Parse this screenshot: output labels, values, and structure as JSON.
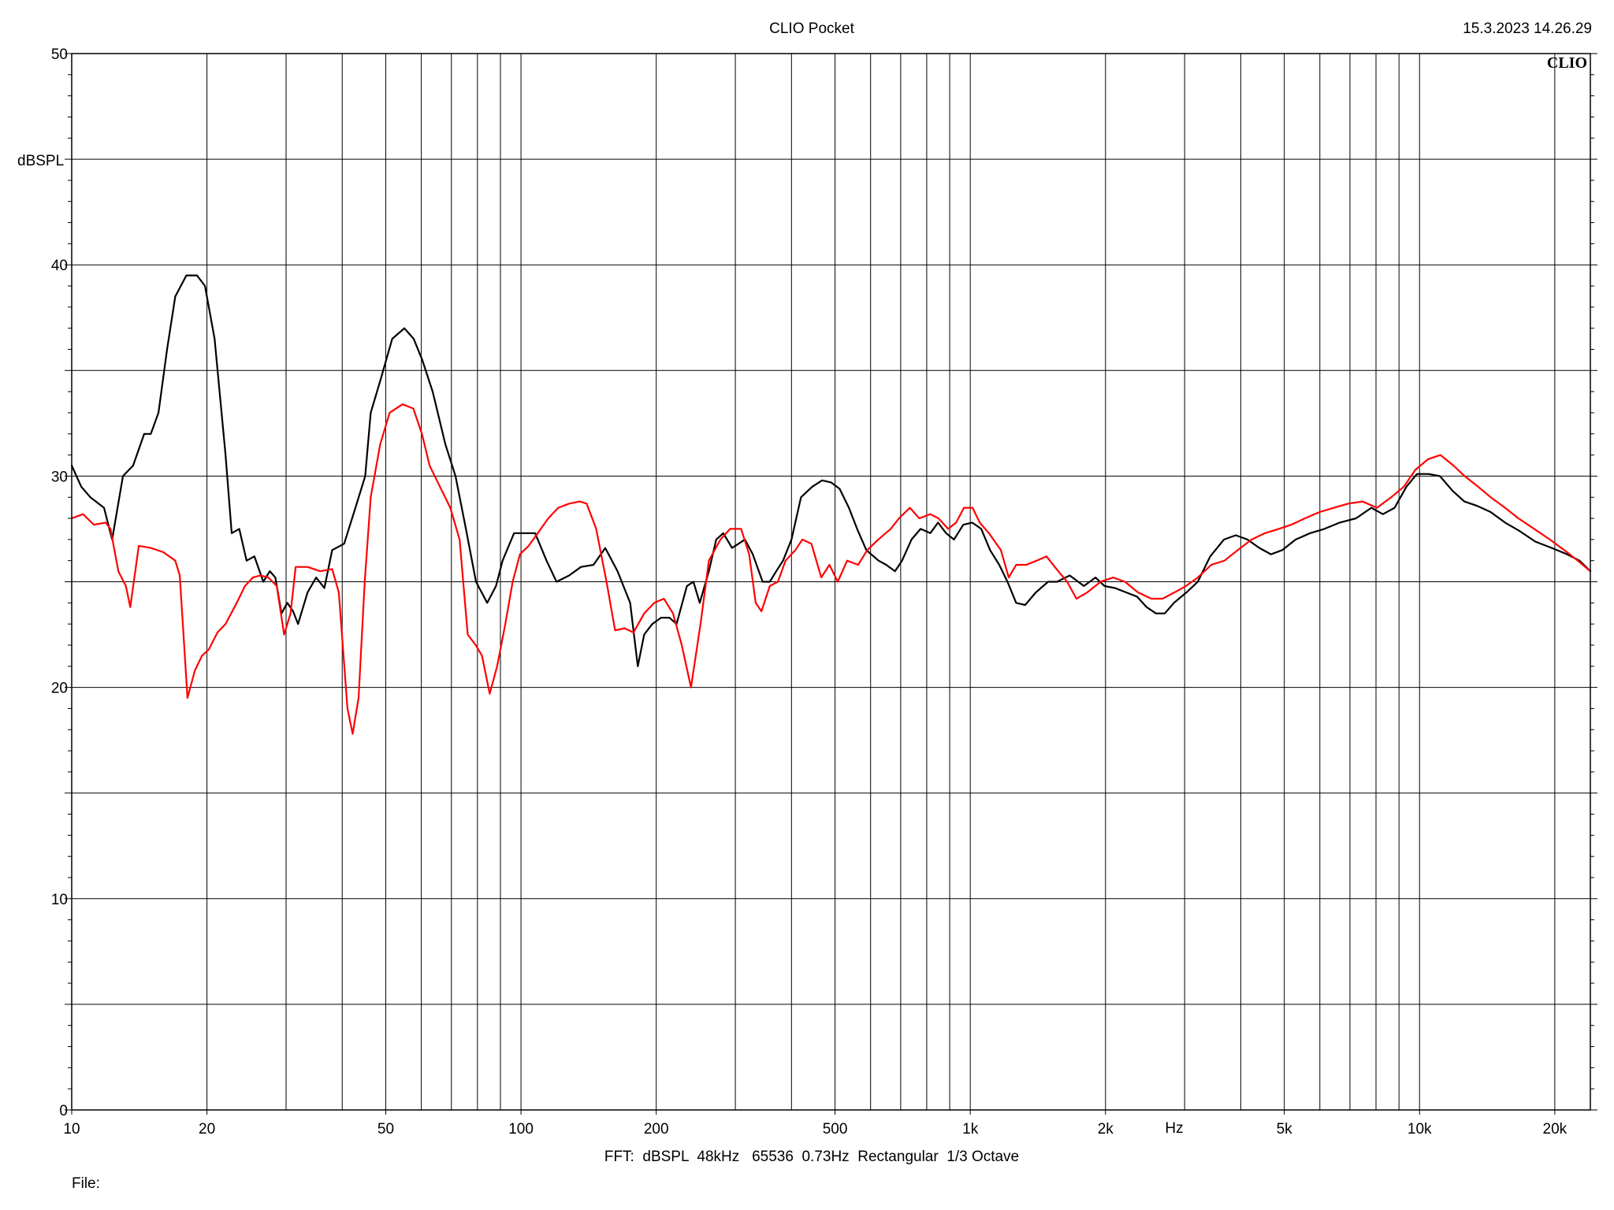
{
  "header": {
    "title": "CLIO Pocket",
    "timestamp": "15.3.2023 14.26.29",
    "brand": "CLIO"
  },
  "footer": {
    "settings": "FFT:  dBSPL  48kHz   65536  0.73Hz  Rectangular  1/3 Octave",
    "file_label": "File:"
  },
  "chart_data": {
    "type": "line",
    "title": "CLIO Pocket",
    "xlabel": "Hz",
    "ylabel": "dBSPL",
    "xscale": "log",
    "xlim": [
      10,
      24000
    ],
    "ylim": [
      0,
      50
    ],
    "grid": true,
    "legend": "none",
    "x_ticks": [
      {
        "value": 10,
        "label": "10"
      },
      {
        "value": 20,
        "label": "20"
      },
      {
        "value": 50,
        "label": "50"
      },
      {
        "value": 100,
        "label": "100"
      },
      {
        "value": 200,
        "label": "200"
      },
      {
        "value": 500,
        "label": "500"
      },
      {
        "value": 1000,
        "label": "1k"
      },
      {
        "value": 2000,
        "label": "2k"
      },
      {
        "value": 5000,
        "label": "5k"
      },
      {
        "value": 10000,
        "label": "10k"
      },
      {
        "value": 20000,
        "label": "20k"
      }
    ],
    "y_ticks": [
      {
        "value": 0,
        "label": "0"
      },
      {
        "value": 10,
        "label": "10"
      },
      {
        "value": 20,
        "label": "20"
      },
      {
        "value": 30,
        "label": "30"
      },
      {
        "value": 40,
        "label": "40"
      },
      {
        "value": 50,
        "label": "50"
      }
    ],
    "series": [
      {
        "color": "#000000",
        "points": [
          [
            10,
            30.5
          ],
          [
            10.5,
            29.5
          ],
          [
            11,
            29.0
          ],
          [
            11.8,
            28.5
          ],
          [
            12.3,
            27.0
          ],
          [
            13,
            30.0
          ],
          [
            13.7,
            30.5
          ],
          [
            14.5,
            32.0
          ],
          [
            15,
            32.0
          ],
          [
            15.6,
            33.0
          ],
          [
            16.3,
            36.0
          ],
          [
            17,
            38.5
          ],
          [
            18,
            39.5
          ],
          [
            19,
            39.5
          ],
          [
            19.8,
            39.0
          ],
          [
            20.8,
            36.5
          ],
          [
            22,
            31.0
          ],
          [
            22.7,
            27.3
          ],
          [
            23.6,
            27.5
          ],
          [
            24.5,
            26.0
          ],
          [
            25.5,
            26.2
          ],
          [
            26.7,
            25.0
          ],
          [
            27.6,
            25.5
          ],
          [
            28.4,
            25.2
          ],
          [
            29.3,
            23.5
          ],
          [
            30.2,
            24.0
          ],
          [
            31.1,
            23.6
          ],
          [
            31.9,
            23.0
          ],
          [
            33.5,
            24.5
          ],
          [
            35,
            25.2
          ],
          [
            36.5,
            24.7
          ],
          [
            38,
            26.5
          ],
          [
            40.4,
            26.8
          ],
          [
            42.8,
            28.5
          ],
          [
            45,
            30.0
          ],
          [
            46.3,
            33.0
          ],
          [
            48.6,
            34.5
          ],
          [
            51.7,
            36.5
          ],
          [
            55,
            37.0
          ],
          [
            57.7,
            36.5
          ],
          [
            60.3,
            35.5
          ],
          [
            63.6,
            34.0
          ],
          [
            67.9,
            31.5
          ],
          [
            71.5,
            30.0
          ],
          [
            75.4,
            27.5
          ],
          [
            79.4,
            25.0
          ],
          [
            84.1,
            24.0
          ],
          [
            88,
            24.8
          ],
          [
            91,
            26.0
          ],
          [
            96.5,
            27.3
          ],
          [
            102,
            27.3
          ],
          [
            107.5,
            27.3
          ],
          [
            114,
            26.0
          ],
          [
            120,
            25.0
          ],
          [
            128,
            25.3
          ],
          [
            136,
            25.7
          ],
          [
            145,
            25.8
          ],
          [
            154,
            26.6
          ],
          [
            164,
            25.5
          ],
          [
            175,
            24.0
          ],
          [
            182,
            21.0
          ],
          [
            188,
            22.5
          ],
          [
            196,
            23.0
          ],
          [
            205,
            23.3
          ],
          [
            214,
            23.3
          ],
          [
            222,
            23.0
          ],
          [
            234,
            24.8
          ],
          [
            242,
            25.0
          ],
          [
            250,
            24.0
          ],
          [
            262,
            25.5
          ],
          [
            272,
            27.0
          ],
          [
            282,
            27.3
          ],
          [
            295,
            26.6
          ],
          [
            305,
            26.8
          ],
          [
            315,
            27.0
          ],
          [
            328,
            26.3
          ],
          [
            345,
            25.0
          ],
          [
            358,
            25.0
          ],
          [
            370,
            25.5
          ],
          [
            383,
            26.0
          ],
          [
            400,
            27.0
          ],
          [
            420,
            29.0
          ],
          [
            445,
            29.5
          ],
          [
            468,
            29.8
          ],
          [
            490,
            29.7
          ],
          [
            512,
            29.4
          ],
          [
            537,
            28.5
          ],
          [
            560,
            27.5
          ],
          [
            587,
            26.5
          ],
          [
            625,
            26.0
          ],
          [
            650,
            25.8
          ],
          [
            680,
            25.5
          ],
          [
            705,
            26.0
          ],
          [
            740,
            27.0
          ],
          [
            775,
            27.5
          ],
          [
            815,
            27.3
          ],
          [
            848,
            27.8
          ],
          [
            883,
            27.3
          ],
          [
            920,
            27.0
          ],
          [
            965,
            27.7
          ],
          [
            1010,
            27.8
          ],
          [
            1058,
            27.5
          ],
          [
            1107,
            26.5
          ],
          [
            1160,
            25.8
          ],
          [
            1210,
            25.0
          ],
          [
            1265,
            24.0
          ],
          [
            1325,
            23.9
          ],
          [
            1400,
            24.5
          ],
          [
            1490,
            25.0
          ],
          [
            1560,
            25.0
          ],
          [
            1665,
            25.3
          ],
          [
            1790,
            24.8
          ],
          [
            1900,
            25.2
          ],
          [
            1990,
            24.8
          ],
          [
            2100,
            24.7
          ],
          [
            2220,
            24.5
          ],
          [
            2350,
            24.3
          ],
          [
            2470,
            23.8
          ],
          [
            2590,
            23.5
          ],
          [
            2710,
            23.5
          ],
          [
            2840,
            24.0
          ],
          [
            3030,
            24.5
          ],
          [
            3210,
            25.0
          ],
          [
            3420,
            26.2
          ],
          [
            3670,
            27.0
          ],
          [
            3900,
            27.2
          ],
          [
            4140,
            27.0
          ],
          [
            4400,
            26.6
          ],
          [
            4670,
            26.3
          ],
          [
            4950,
            26.5
          ],
          [
            5300,
            27.0
          ],
          [
            5710,
            27.3
          ],
          [
            6140,
            27.5
          ],
          [
            6640,
            27.8
          ],
          [
            7220,
            28.0
          ],
          [
            7810,
            28.5
          ],
          [
            8290,
            28.2
          ],
          [
            8800,
            28.5
          ],
          [
            9350,
            29.5
          ],
          [
            9870,
            30.1
          ],
          [
            10480,
            30.1
          ],
          [
            11100,
            30.0
          ],
          [
            11850,
            29.3
          ],
          [
            12580,
            28.8
          ],
          [
            13400,
            28.6
          ],
          [
            14400,
            28.3
          ],
          [
            15500,
            27.8
          ],
          [
            16700,
            27.4
          ],
          [
            18100,
            26.9
          ],
          [
            19700,
            26.6
          ],
          [
            21300,
            26.3
          ],
          [
            22700,
            26.0
          ],
          [
            24000,
            25.5
          ]
        ]
      },
      {
        "color": "#ff0000",
        "points": [
          [
            10,
            28.0
          ],
          [
            10.6,
            28.2
          ],
          [
            11.2,
            27.7
          ],
          [
            11.9,
            27.8
          ],
          [
            12.2,
            27.5
          ],
          [
            12.7,
            25.5
          ],
          [
            13.2,
            24.8
          ],
          [
            13.5,
            23.8
          ],
          [
            14.1,
            26.7
          ],
          [
            15,
            26.6
          ],
          [
            16,
            26.4
          ],
          [
            17,
            26.0
          ],
          [
            17.4,
            25.3
          ],
          [
            18.1,
            19.5
          ],
          [
            18.8,
            20.8
          ],
          [
            19.5,
            21.5
          ],
          [
            20.2,
            21.8
          ],
          [
            21.1,
            22.6
          ],
          [
            22,
            23.0
          ],
          [
            23.3,
            24.0
          ],
          [
            24.3,
            24.8
          ],
          [
            25.3,
            25.2
          ],
          [
            26.3,
            25.3
          ],
          [
            27.4,
            25.2
          ],
          [
            28.6,
            24.8
          ],
          [
            29.7,
            22.5
          ],
          [
            30.7,
            23.5
          ],
          [
            31.5,
            25.7
          ],
          [
            33.5,
            25.7
          ],
          [
            35.7,
            25.5
          ],
          [
            38,
            25.6
          ],
          [
            39.3,
            24.5
          ],
          [
            41.1,
            19.0
          ],
          [
            42.2,
            17.8
          ],
          [
            43.5,
            19.5
          ],
          [
            44.9,
            25.0
          ],
          [
            46.3,
            29.0
          ],
          [
            48.6,
            31.5
          ],
          [
            51,
            33.0
          ],
          [
            54.5,
            33.4
          ],
          [
            57.6,
            33.2
          ],
          [
            60.2,
            32.0
          ],
          [
            62.6,
            30.5
          ],
          [
            66,
            29.5
          ],
          [
            69.6,
            28.5
          ],
          [
            73,
            27.0
          ],
          [
            76.1,
            22.5
          ],
          [
            79.3,
            22.0
          ],
          [
            81.9,
            21.5
          ],
          [
            85.2,
            19.7
          ],
          [
            88.5,
            21.0
          ],
          [
            92.3,
            23.0
          ],
          [
            95.8,
            25.0
          ],
          [
            99.5,
            26.3
          ],
          [
            104,
            26.7
          ],
          [
            109,
            27.3
          ],
          [
            115,
            28.0
          ],
          [
            121,
            28.5
          ],
          [
            128,
            28.7
          ],
          [
            135,
            28.8
          ],
          [
            140,
            28.7
          ],
          [
            147,
            27.5
          ],
          [
            155,
            25.0
          ],
          [
            162,
            22.7
          ],
          [
            170,
            22.8
          ],
          [
            178,
            22.6
          ],
          [
            188,
            23.5
          ],
          [
            198,
            24.0
          ],
          [
            208,
            24.2
          ],
          [
            218,
            23.5
          ],
          [
            228,
            22.0
          ],
          [
            239,
            20.0
          ],
          [
            251,
            23.0
          ],
          [
            262,
            26.0
          ],
          [
            278,
            27.0
          ],
          [
            292,
            27.5
          ],
          [
            309,
            27.5
          ],
          [
            322,
            26.3
          ],
          [
            333,
            24.0
          ],
          [
            343,
            23.6
          ],
          [
            358,
            24.8
          ],
          [
            373,
            25.0
          ],
          [
            388,
            26.0
          ],
          [
            408,
            26.5
          ],
          [
            423,
            27.0
          ],
          [
            443,
            26.8
          ],
          [
            466,
            25.2
          ],
          [
            486,
            25.8
          ],
          [
            507,
            25.0
          ],
          [
            532,
            26.0
          ],
          [
            563,
            25.8
          ],
          [
            590,
            26.5
          ],
          [
            624,
            27.0
          ],
          [
            665,
            27.5
          ],
          [
            694,
            28.0
          ],
          [
            734,
            28.5
          ],
          [
            770,
            28.0
          ],
          [
            815,
            28.2
          ],
          [
            850,
            28.0
          ],
          [
            893,
            27.5
          ],
          [
            930,
            27.8
          ],
          [
            968,
            28.5
          ],
          [
            1012,
            28.5
          ],
          [
            1050,
            27.8
          ],
          [
            1100,
            27.3
          ],
          [
            1170,
            26.5
          ],
          [
            1218,
            25.2
          ],
          [
            1265,
            25.8
          ],
          [
            1333,
            25.8
          ],
          [
            1405,
            26.0
          ],
          [
            1478,
            26.2
          ],
          [
            1570,
            25.5
          ],
          [
            1643,
            25.0
          ],
          [
            1723,
            24.2
          ],
          [
            1823,
            24.5
          ],
          [
            1950,
            25.0
          ],
          [
            2080,
            25.2
          ],
          [
            2210,
            25.0
          ],
          [
            2360,
            24.5
          ],
          [
            2530,
            24.2
          ],
          [
            2680,
            24.2
          ],
          [
            2850,
            24.5
          ],
          [
            3020,
            24.8
          ],
          [
            3210,
            25.2
          ],
          [
            3440,
            25.8
          ],
          [
            3680,
            26.0
          ],
          [
            3940,
            26.5
          ],
          [
            4230,
            27.0
          ],
          [
            4530,
            27.3
          ],
          [
            4860,
            27.5
          ],
          [
            5180,
            27.7
          ],
          [
            5560,
            28.0
          ],
          [
            5990,
            28.3
          ],
          [
            6450,
            28.5
          ],
          [
            6940,
            28.7
          ],
          [
            7470,
            28.8
          ],
          [
            8040,
            28.5
          ],
          [
            8650,
            29.0
          ],
          [
            9230,
            29.5
          ],
          [
            9790,
            30.3
          ],
          [
            10450,
            30.8
          ],
          [
            11130,
            31.0
          ],
          [
            11900,
            30.5
          ],
          [
            12600,
            30.0
          ],
          [
            13500,
            29.5
          ],
          [
            14400,
            29.0
          ],
          [
            15500,
            28.5
          ],
          [
            16600,
            28.0
          ],
          [
            18000,
            27.5
          ],
          [
            19500,
            27.0
          ],
          [
            21000,
            26.5
          ],
          [
            22500,
            26.0
          ],
          [
            24000,
            25.5
          ]
        ]
      }
    ]
  }
}
